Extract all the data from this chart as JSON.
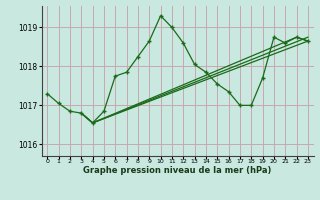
{
  "xlabel_label": "Graphe pression niveau de la mer (hPa)",
  "bg_color": "#c8e8e0",
  "plot_bg_color": "#c8e8e0",
  "grid_color": "#c8a8b0",
  "line_color": "#1a6b1a",
  "ylim": [
    1015.7,
    1019.55
  ],
  "xlim": [
    -0.5,
    23.5
  ],
  "yticks": [
    1016,
    1017,
    1018,
    1019
  ],
  "xticks": [
    0,
    1,
    2,
    3,
    4,
    5,
    6,
    7,
    8,
    9,
    10,
    11,
    12,
    13,
    14,
    15,
    16,
    17,
    18,
    19,
    20,
    21,
    22,
    23
  ],
  "series1_x": [
    0,
    1,
    2,
    3,
    4,
    5,
    6,
    7,
    8,
    9,
    10,
    11,
    12,
    13,
    14,
    15,
    16,
    17,
    18,
    19,
    20,
    21,
    22,
    23
  ],
  "series1_y": [
    1017.3,
    1017.05,
    1016.85,
    1016.8,
    1016.55,
    1016.85,
    1017.75,
    1017.85,
    1018.25,
    1018.65,
    1019.3,
    1019.0,
    1018.6,
    1018.05,
    1017.85,
    1017.55,
    1017.35,
    1017.0,
    1017.0,
    1017.7,
    1018.75,
    1018.6,
    1018.75,
    1018.65
  ],
  "series2_x": [
    3,
    4,
    23
  ],
  "series2_y": [
    1016.8,
    1016.55,
    1018.65
  ],
  "series3_x": [
    3,
    4,
    23
  ],
  "series3_y": [
    1016.8,
    1016.55,
    1018.75
  ],
  "series4_x": [
    3,
    4,
    22,
    23
  ],
  "series4_y": [
    1016.8,
    1016.55,
    1018.75,
    1018.65
  ]
}
